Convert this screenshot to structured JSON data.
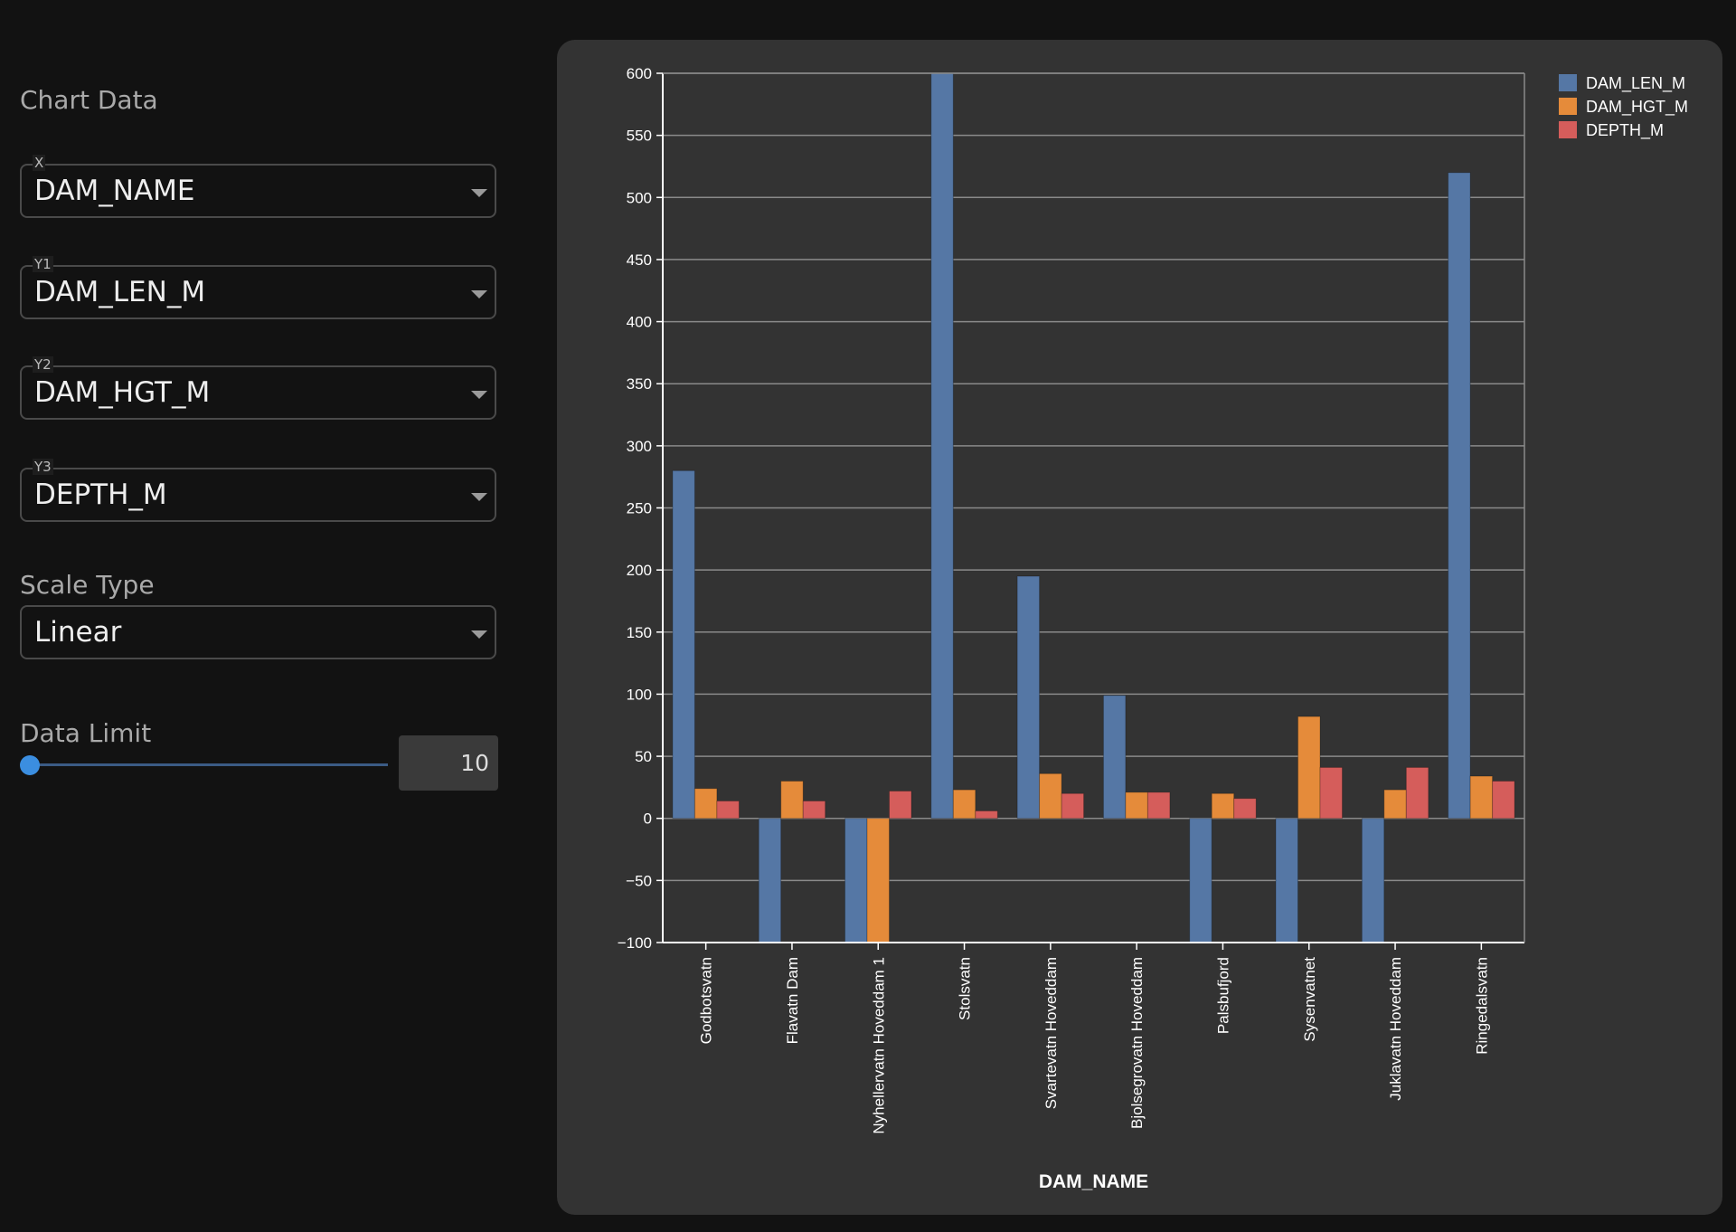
{
  "sidebar": {
    "chart_data_label": "Chart Data",
    "x": {
      "label": "X",
      "value": "DAM_NAME"
    },
    "y1": {
      "label": "Y1",
      "value": "DAM_LEN_M"
    },
    "y2": {
      "label": "Y2",
      "value": "DAM_HGT_M"
    },
    "y3": {
      "label": "Y3",
      "value": "DEPTH_M"
    },
    "scale_type_label": "Scale Type",
    "scale_type_value": "Linear",
    "data_limit_label": "Data Limit",
    "data_limit_value": "10"
  },
  "chart_data": {
    "type": "bar",
    "xlabel": "DAM_NAME",
    "ylabel": "",
    "ylim": [
      -100,
      600
    ],
    "yticks": [
      -100,
      -50,
      0,
      50,
      100,
      150,
      200,
      250,
      300,
      350,
      400,
      450,
      500,
      550,
      600
    ],
    "grid": true,
    "legend_position": "top-right",
    "categories": [
      "Godbotsvatn",
      "Flavatn Dam",
      "Nyhellervatn Hoveddam 1",
      "Stolsvatn",
      "Svartevatn Hoveddam",
      "Bjolsegrovatn Hoveddam",
      "Palsbufjord",
      "Sysenvatnet",
      "Juklavatn Hoveddam",
      "Ringedalsvatn"
    ],
    "series": [
      {
        "name": "DAM_LEN_M",
        "color": "#5577a5",
        "values": [
          280,
          -100,
          -100,
          600,
          195,
          99,
          -100,
          -100,
          -100,
          520
        ]
      },
      {
        "name": "DAM_HGT_M",
        "color": "#e58b3a",
        "values": [
          24,
          30,
          -100,
          23,
          36,
          21,
          20,
          82,
          23,
          34
        ]
      },
      {
        "name": "DEPTH_M",
        "color": "#d55d5b",
        "values": [
          14,
          14,
          22,
          6,
          20,
          21,
          16,
          41,
          41,
          30
        ]
      }
    ]
  }
}
